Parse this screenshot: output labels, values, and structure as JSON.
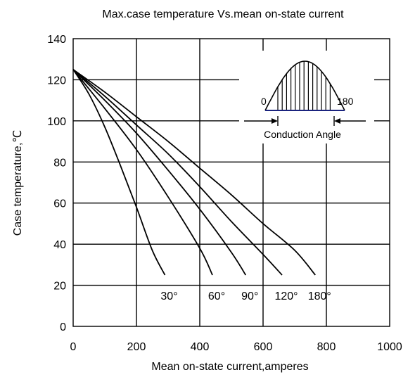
{
  "chart_data": {
    "type": "line",
    "title": "Max.case temperature Vs.mean on-state current",
    "xlabel": "Mean on-state current,amperes",
    "ylabel": "Case temperature,℃",
    "xlim": [
      0,
      1000
    ],
    "ylim": [
      0,
      140
    ],
    "xticks": [
      0,
      200,
      400,
      600,
      800,
      1000
    ],
    "yticks": [
      0,
      20,
      40,
      60,
      80,
      100,
      120,
      140
    ],
    "grid": true,
    "series": [
      {
        "name": "30°",
        "x": [
          0,
          50,
          100,
          150,
          200,
          250,
          290
        ],
        "y": [
          125,
          113,
          97,
          78,
          58,
          37,
          25
        ]
      },
      {
        "name": "60°",
        "x": [
          0,
          100,
          200,
          300,
          400,
          440
        ],
        "y": [
          125,
          106,
          86,
          63,
          38,
          25
        ]
      },
      {
        "name": "90°",
        "x": [
          0,
          100,
          200,
          300,
          400,
          500,
          545
        ],
        "y": [
          125,
          110,
          94,
          76,
          57,
          36,
          25
        ]
      },
      {
        "name": "120°",
        "x": [
          0,
          100,
          200,
          300,
          400,
          500,
          600,
          660
        ],
        "y": [
          125,
          112,
          98,
          84,
          68,
          51,
          35,
          25
        ]
      },
      {
        "name": "180°",
        "x": [
          0,
          100,
          200,
          300,
          400,
          500,
          600,
          700,
          765
        ],
        "y": [
          125,
          114,
          102,
          90,
          77,
          64,
          50,
          37,
          25
        ]
      }
    ],
    "series_label_y": 15
  },
  "inset": {
    "label_start": "0",
    "label_end": "180",
    "caption": "Conduction Angle"
  }
}
